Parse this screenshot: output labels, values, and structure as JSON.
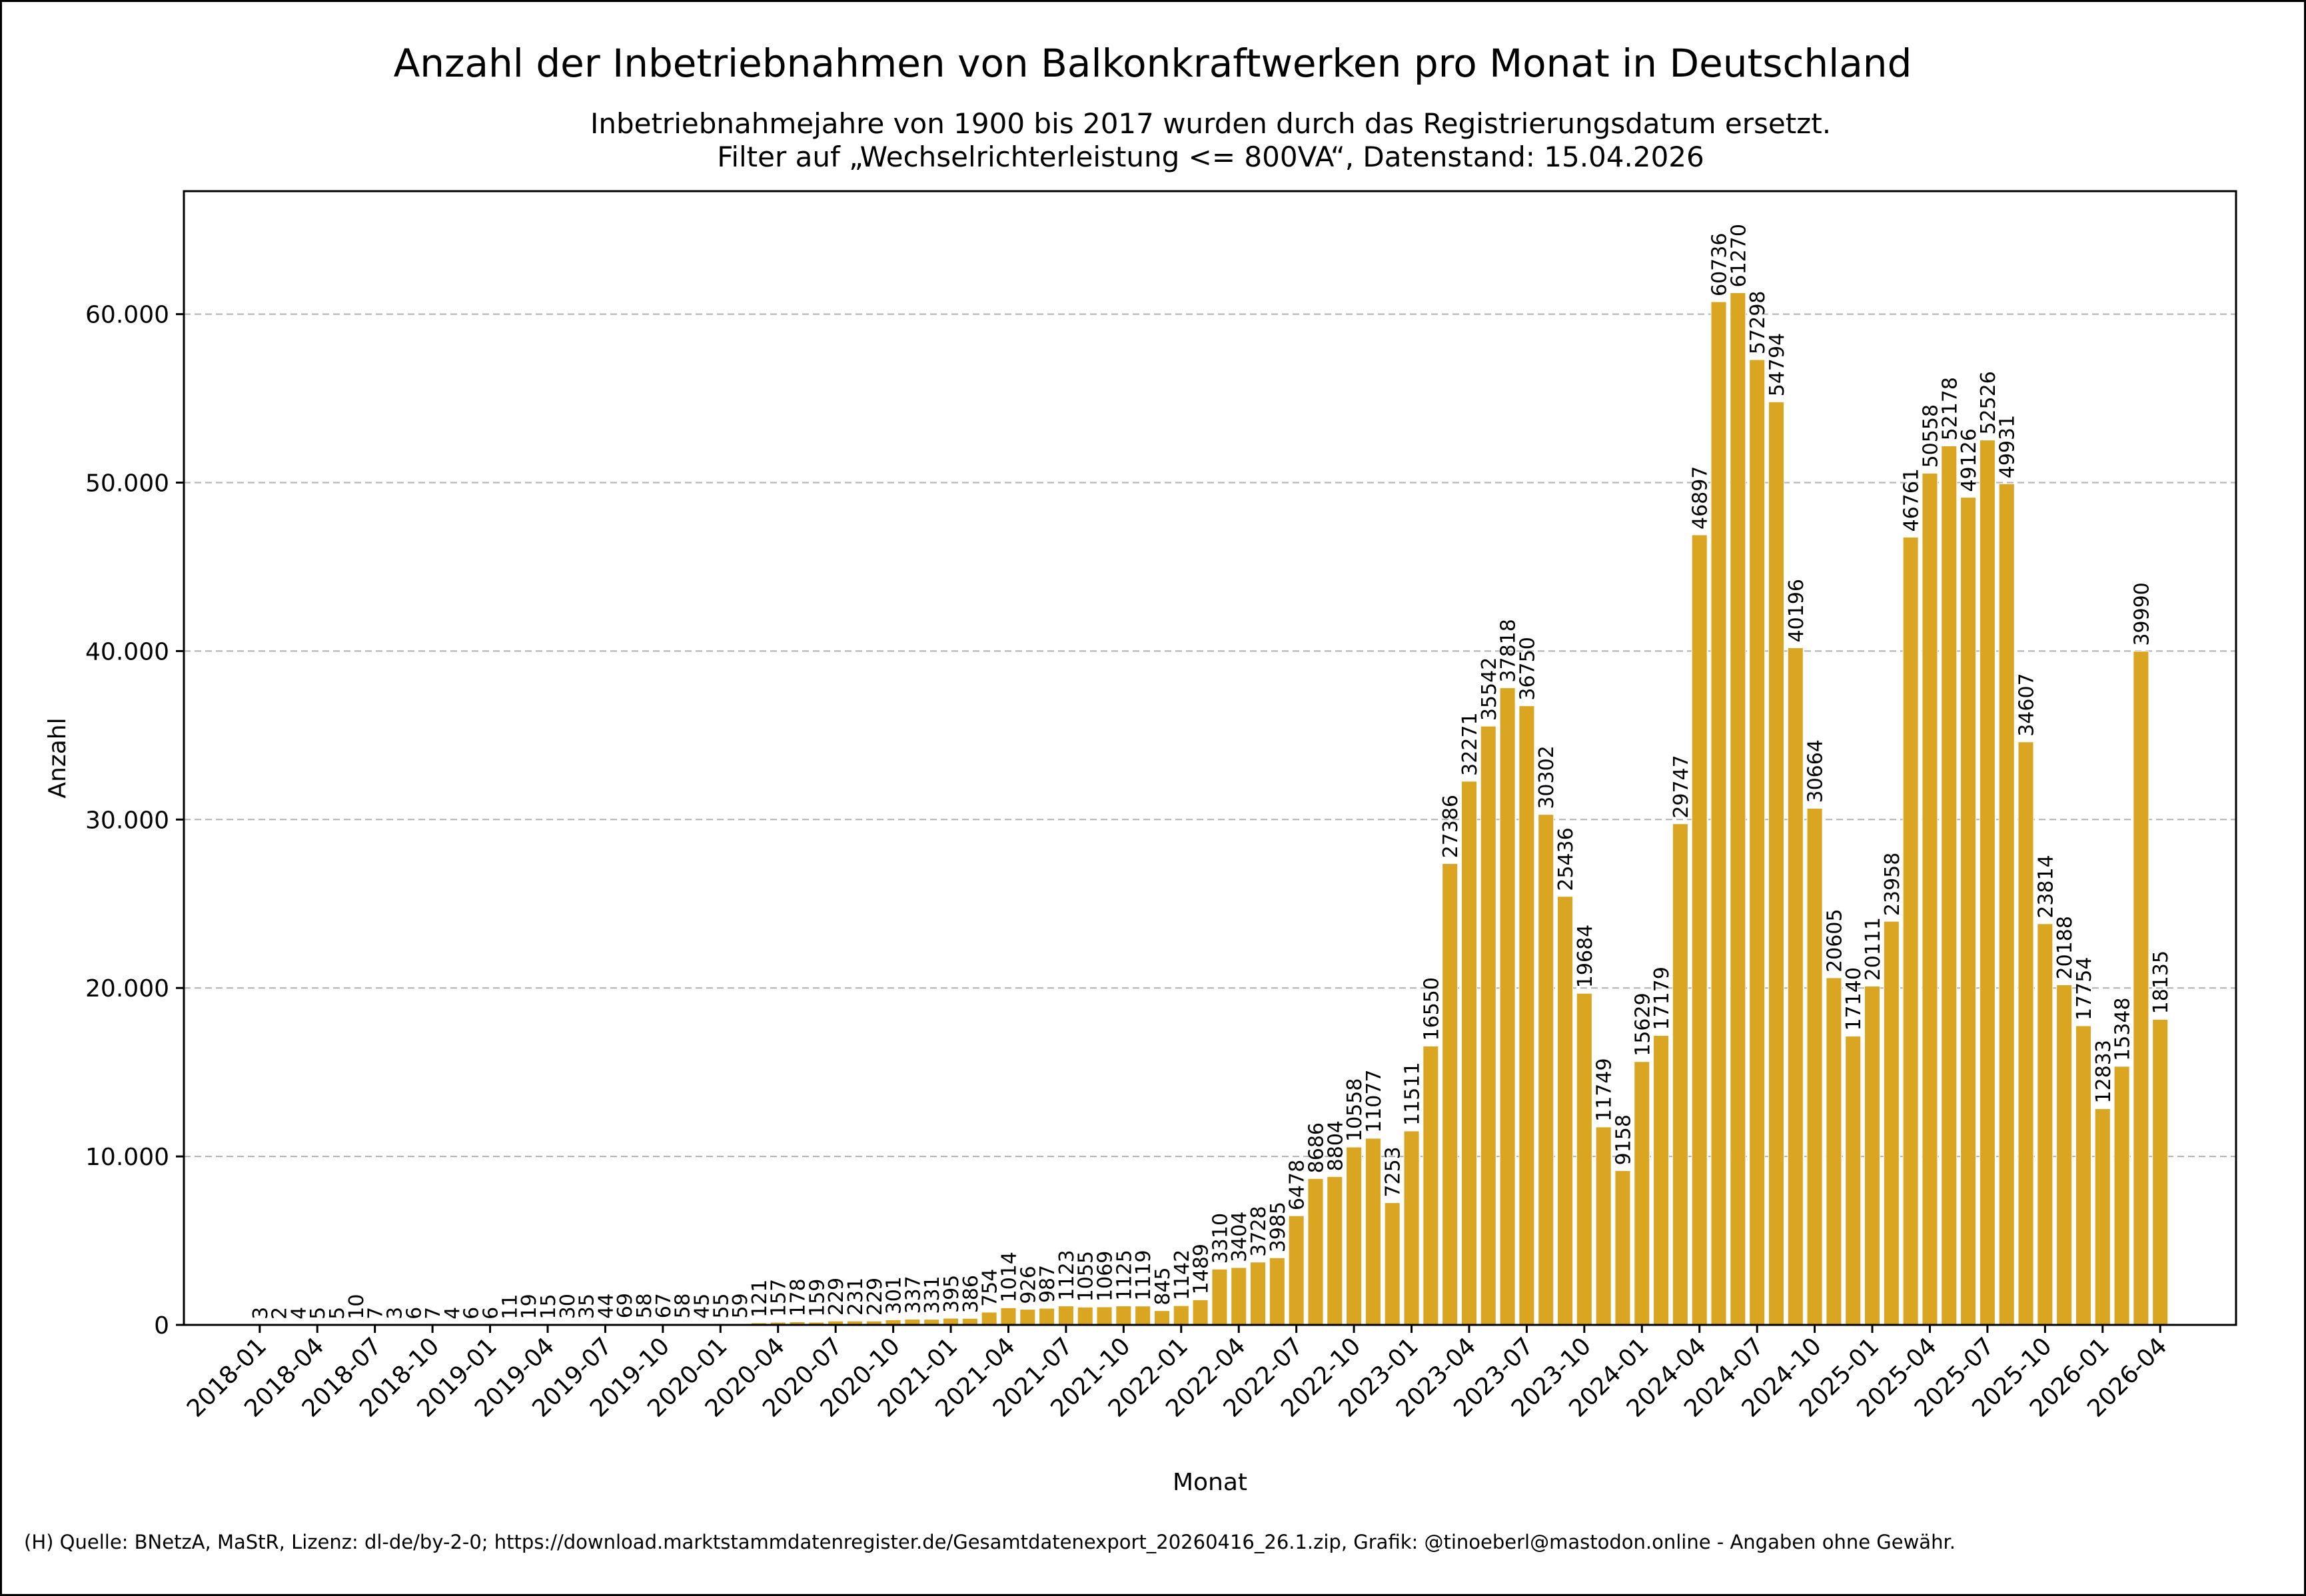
{
  "chart_data": {
    "type": "bar",
    "title": "Anzahl der Inbetriebnahmen von Balkonkraftwerken pro Monat in Deutschland",
    "subtitle_lines": [
      "Inbetriebnahmejahre von 1900 bis 2017 wurden durch das Registrierungsdatum ersetzt.",
      "Filter auf „Wechselrichterleistung <= 800VA“, Datenstand: 15.04.2026"
    ],
    "xlabel": "Monat",
    "ylabel": "Anzahl",
    "ylim": [
      0,
      67300
    ],
    "yticks": [
      0,
      10000,
      20000,
      30000,
      40000,
      50000,
      60000
    ],
    "ytick_labels": [
      "0",
      "10.000",
      "20.000",
      "30.000",
      "40.000",
      "50.000",
      "60.000"
    ],
    "grid": "horizontal-dashed",
    "bar_color": "#DAA520",
    "xtick_every": 3,
    "categories": [
      "2018-01",
      "2018-02",
      "2018-03",
      "2018-04",
      "2018-05",
      "2018-06",
      "2018-07",
      "2018-08",
      "2018-09",
      "2018-10",
      "2018-11",
      "2018-12",
      "2019-01",
      "2019-02",
      "2019-03",
      "2019-04",
      "2019-05",
      "2019-06",
      "2019-07",
      "2019-08",
      "2019-09",
      "2019-10",
      "2019-11",
      "2019-12",
      "2020-01",
      "2020-02",
      "2020-03",
      "2020-04",
      "2020-05",
      "2020-06",
      "2020-07",
      "2020-08",
      "2020-09",
      "2020-10",
      "2020-11",
      "2020-12",
      "2021-01",
      "2021-02",
      "2021-03",
      "2021-04",
      "2021-05",
      "2021-06",
      "2021-07",
      "2021-08",
      "2021-09",
      "2021-10",
      "2021-11",
      "2021-12",
      "2022-01",
      "2022-02",
      "2022-03",
      "2022-04",
      "2022-05",
      "2022-06",
      "2022-07",
      "2022-08",
      "2022-09",
      "2022-10",
      "2022-11",
      "2022-12",
      "2023-01",
      "2023-02",
      "2023-03",
      "2023-04",
      "2023-05",
      "2023-06",
      "2023-07",
      "2023-08",
      "2023-09",
      "2023-10",
      "2023-11",
      "2023-12",
      "2024-01",
      "2024-02",
      "2024-03",
      "2024-04",
      "2024-05",
      "2024-06",
      "2024-07",
      "2024-08",
      "2024-09",
      "2024-10",
      "2024-11",
      "2024-12",
      "2025-01",
      "2025-02",
      "2025-03",
      "2025-04",
      "2025-05",
      "2025-06",
      "2025-07",
      "2025-08",
      "2025-09",
      "2025-10",
      "2025-11",
      "2025-12",
      "2026-01",
      "2026-02",
      "2026-03",
      "2026-04"
    ],
    "values": [
      3,
      2,
      4,
      5,
      5,
      10,
      7,
      3,
      6,
      7,
      4,
      6,
      6,
      11,
      19,
      15,
      30,
      35,
      44,
      69,
      58,
      67,
      58,
      45,
      55,
      59,
      121,
      157,
      178,
      159,
      229,
      231,
      229,
      301,
      337,
      331,
      395,
      386,
      754,
      1014,
      926,
      987,
      1123,
      1055,
      1069,
      1125,
      1119,
      845,
      1142,
      1489,
      3310,
      3404,
      3728,
      3985,
      6478,
      8686,
      8804,
      10558,
      11077,
      7253,
      11511,
      16550,
      27386,
      32271,
      35542,
      37818,
      36750,
      30302,
      25436,
      19684,
      11749,
      9158,
      15629,
      17179,
      29747,
      46897,
      60736,
      61270,
      57298,
      54794,
      40196,
      30664,
      20605,
      17140,
      20111,
      23958,
      46761,
      50558,
      52178,
      49126,
      52526,
      49931,
      34607,
      23814,
      20188,
      17754,
      12833,
      15348,
      39990,
      18135
    ]
  },
  "footer": "(H) Quelle: BNetzA, MaStR, Lizenz: dl-de/by-2-0; https://download.marktstammdatenregister.de/Gesamtdatenexport_20260416_26.1.zip, Grafik: @tinoeberl@mastodon.online - Angaben ohne Gewähr."
}
